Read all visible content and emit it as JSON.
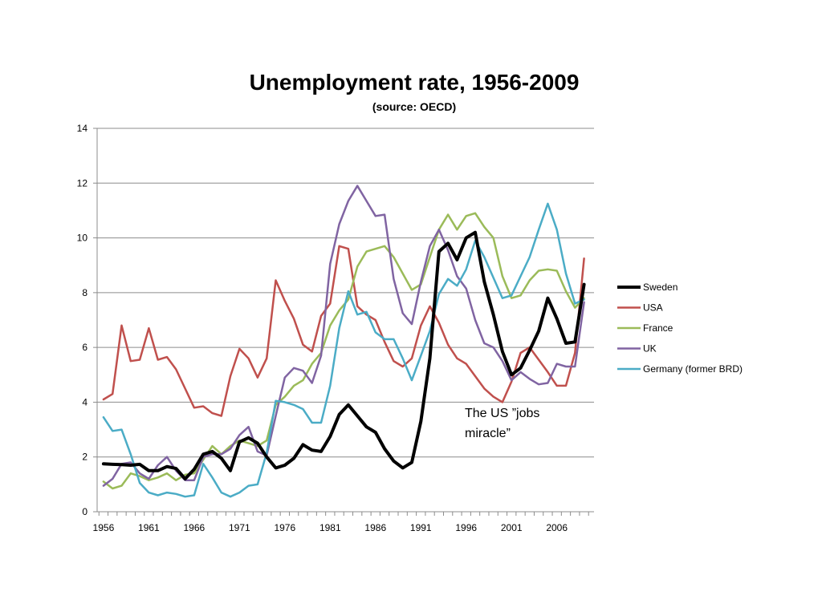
{
  "chart_data": {
    "type": "line",
    "title": "Unemployment rate, 1956-2009",
    "subtitle": "(source: OECD)",
    "xlabel": "",
    "ylabel": "",
    "xlim": [
      1956,
      2009
    ],
    "ylim": [
      0,
      14
    ],
    "y_ticks": [
      0,
      2,
      4,
      6,
      8,
      10,
      12,
      14
    ],
    "x_tick_labels": [
      "1956",
      "1961",
      "1966",
      "1971",
      "1976",
      "1981",
      "1986",
      "1991",
      "1996",
      "2001",
      "2006"
    ],
    "grid": "horizontal",
    "legend_position": "right",
    "annotation": [
      "The US ”jobs",
      "miracle”"
    ],
    "x": [
      1956,
      1957,
      1958,
      1959,
      1960,
      1961,
      1962,
      1963,
      1964,
      1965,
      1966,
      1967,
      1968,
      1969,
      1970,
      1971,
      1972,
      1973,
      1974,
      1975,
      1976,
      1977,
      1978,
      1979,
      1980,
      1981,
      1982,
      1983,
      1984,
      1985,
      1986,
      1987,
      1988,
      1989,
      1990,
      1991,
      1992,
      1993,
      1994,
      1995,
      1996,
      1997,
      1998,
      1999,
      2000,
      2001,
      2002,
      2003,
      2004,
      2005,
      2006,
      2007,
      2008,
      2009
    ],
    "series": [
      {
        "name": "Sweden",
        "color": "#000000",
        "width": 4,
        "values": [
          1.75,
          1.73,
          1.72,
          1.7,
          1.73,
          1.5,
          1.5,
          1.65,
          1.58,
          1.2,
          1.55,
          2.1,
          2.2,
          1.95,
          1.5,
          2.55,
          2.7,
          2.5,
          2.0,
          1.6,
          1.7,
          1.95,
          2.45,
          2.25,
          2.2,
          2.75,
          3.55,
          3.9,
          3.5,
          3.1,
          2.9,
          2.3,
          1.85,
          1.6,
          1.8,
          3.3,
          5.6,
          9.5,
          9.8,
          9.2,
          10.0,
          10.2,
          8.4,
          7.2,
          5.85,
          5.0,
          5.25,
          5.9,
          6.6,
          7.8,
          7.05,
          6.15,
          6.2,
          8.3
        ]
      },
      {
        "name": "USA",
        "color": "#c0504d",
        "width": 2.5,
        "values": [
          4.1,
          4.3,
          6.8,
          5.5,
          5.55,
          6.7,
          5.55,
          5.65,
          5.2,
          4.5,
          3.8,
          3.85,
          3.6,
          3.5,
          4.95,
          5.95,
          5.6,
          4.9,
          5.6,
          8.45,
          7.7,
          7.05,
          6.1,
          5.85,
          7.15,
          7.6,
          9.7,
          9.6,
          7.5,
          7.2,
          7.0,
          6.2,
          5.5,
          5.3,
          5.6,
          6.8,
          7.5,
          6.9,
          6.1,
          5.6,
          5.4,
          4.95,
          4.5,
          4.2,
          4.0,
          4.75,
          5.8,
          6.0,
          5.55,
          5.1,
          4.6,
          4.6,
          5.8,
          9.25
        ]
      },
      {
        "name": "France",
        "color": "#9bbb59",
        "width": 2.5,
        "values": [
          1.1,
          0.85,
          0.95,
          1.4,
          1.3,
          1.15,
          1.25,
          1.4,
          1.15,
          1.35,
          1.4,
          1.9,
          2.4,
          2.1,
          2.4,
          2.6,
          2.5,
          2.4,
          2.6,
          3.9,
          4.2,
          4.6,
          4.8,
          5.4,
          5.8,
          6.8,
          7.35,
          7.75,
          8.95,
          9.5,
          9.6,
          9.7,
          9.3,
          8.7,
          8.1,
          8.3,
          9.3,
          10.3,
          10.85,
          10.3,
          10.8,
          10.9,
          10.4,
          10.0,
          8.6,
          7.8,
          7.9,
          8.45,
          8.8,
          8.85,
          8.8,
          8.05,
          7.45,
          7.8
        ]
      },
      {
        "name": "UK",
        "color": "#8064a2",
        "width": 2.5,
        "values": [
          0.95,
          1.2,
          1.75,
          1.8,
          1.4,
          1.2,
          1.7,
          2.0,
          1.5,
          1.15,
          1.15,
          2.0,
          2.1,
          2.1,
          2.3,
          2.8,
          3.1,
          2.2,
          2.05,
          3.5,
          4.9,
          5.25,
          5.15,
          4.7,
          5.7,
          9.05,
          10.5,
          11.35,
          11.9,
          11.35,
          10.8,
          10.85,
          8.5,
          7.25,
          6.85,
          8.4,
          9.7,
          10.3,
          9.55,
          8.6,
          8.15,
          7.0,
          6.15,
          6.0,
          5.5,
          4.8,
          5.1,
          4.85,
          4.65,
          4.7,
          5.4,
          5.3,
          5.3,
          7.65
        ]
      },
      {
        "name": "Germany (former BRD)",
        "color": "#4bacc6",
        "width": 2.5,
        "values": [
          3.45,
          2.95,
          3.0,
          2.1,
          1.05,
          0.7,
          0.6,
          0.7,
          0.65,
          0.55,
          0.6,
          1.75,
          1.25,
          0.7,
          0.55,
          0.7,
          0.95,
          1.0,
          2.15,
          4.05,
          4.0,
          3.9,
          3.75,
          3.25,
          3.25,
          4.6,
          6.7,
          8.05,
          7.2,
          7.3,
          6.55,
          6.3,
          6.3,
          5.6,
          4.8,
          5.7,
          6.6,
          7.95,
          8.5,
          8.25,
          8.85,
          9.9,
          9.3,
          8.55,
          7.8,
          7.9,
          8.6,
          9.3,
          10.3,
          11.25,
          10.3,
          8.7,
          7.6,
          7.75
        ]
      }
    ]
  }
}
